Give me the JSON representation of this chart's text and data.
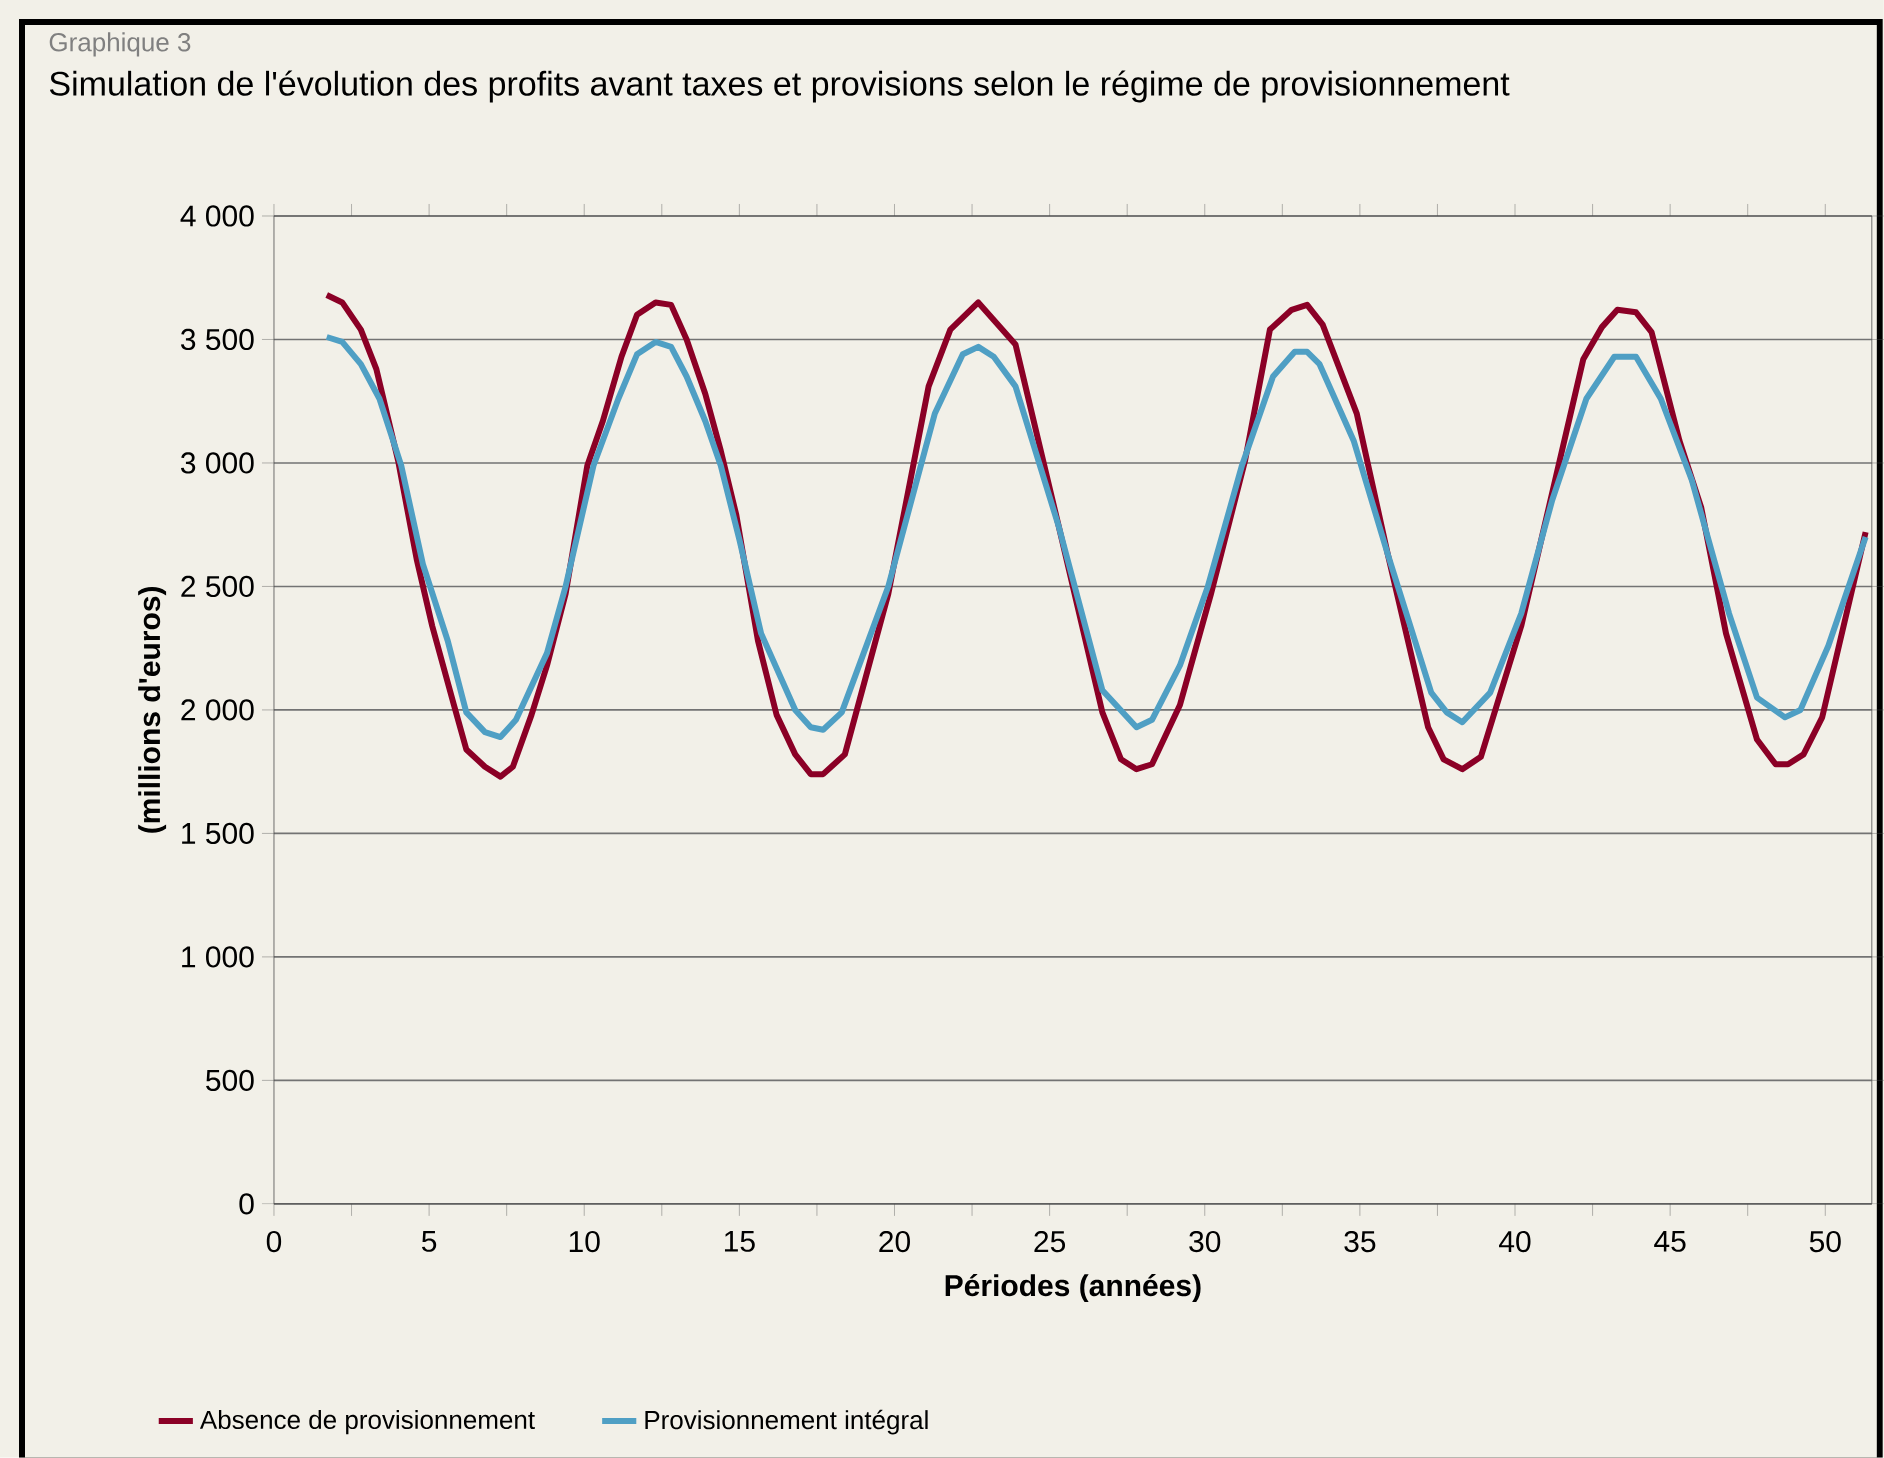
{
  "chart_data": {
    "type": "line",
    "title": "Simulation de l'évolution des profits avant taxes et provisions selon le régime de provisionnement",
    "annotations": [
      "Graphique 3"
    ],
    "xlabel": "Périodes (années)",
    "ylabel": "(millions d'euros)",
    "xlim": [
      0,
      51.5
    ],
    "ylim": [
      0,
      4000
    ],
    "xticks": [
      0,
      {
        "value": 2.5,
        "label": null
      },
      5,
      {
        "value": 7.5,
        "label": null
      },
      10,
      {
        "value": 12.5,
        "label": null
      },
      15,
      {
        "value": 17.5,
        "label": null
      },
      20,
      {
        "value": 22.5,
        "label": null
      },
      25,
      {
        "value": 27.5,
        "label": null
      },
      30,
      {
        "value": 32.5,
        "label": null
      },
      35,
      {
        "value": 37.5,
        "label": null
      },
      40,
      {
        "value": 42.5,
        "label": null
      },
      45,
      {
        "value": 47.5,
        "label": null
      },
      50
    ],
    "yticks": [
      0,
      500,
      {
        "value": 1000,
        "label": "1 000"
      },
      {
        "value": 1500,
        "label": "1 500"
      },
      {
        "value": 2000,
        "label": "2 000"
      },
      {
        "value": 2500,
        "label": "2 500"
      },
      {
        "value": 3000,
        "label": "3 000"
      },
      {
        "value": 3500,
        "label": "3 500"
      },
      {
        "value": 4000,
        "label": "4 000"
      }
    ],
    "grid": "y",
    "legend": "bottom",
    "marker": "none",
    "line_style": "solid",
    "series": [
      {
        "name": "Absence de provisionnement",
        "color": "#8b0026",
        "x": [
          1.7,
          2.2,
          2.8,
          3.3,
          4.0,
          4.6,
          5.1,
          5.8,
          6.2,
          6.8,
          7.3,
          7.7,
          8.3,
          8.8,
          9.4,
          10.1,
          10.6,
          11.2,
          11.7,
          12.3,
          12.8,
          13.3,
          13.9,
          14.4,
          14.9,
          15.6,
          16.2,
          16.8,
          17.3,
          17.7,
          18.4,
          19.8,
          21.1,
          21.8,
          22.7,
          23.9,
          25.3,
          26.7,
          27.3,
          27.8,
          28.3,
          29.2,
          30.2,
          31.3,
          32.1,
          32.8,
          33.3,
          33.8,
          34.9,
          35.9,
          37.2,
          37.7,
          38.3,
          38.9,
          40.2,
          41.2,
          42.2,
          42.8,
          43.3,
          43.9,
          44.4,
          45.3,
          46.0,
          46.8,
          47.8,
          48.4,
          48.8,
          49.3,
          49.9,
          51.3
        ],
        "values": [
          3680,
          3650,
          3540,
          3380,
          3010,
          2610,
          2340,
          2020,
          1840,
          1770,
          1730,
          1770,
          1980,
          2180,
          2470,
          2990,
          3170,
          3430,
          3600,
          3650,
          3640,
          3500,
          3280,
          3050,
          2790,
          2280,
          1980,
          1820,
          1740,
          1740,
          1820,
          2470,
          3310,
          3540,
          3650,
          3480,
          2740,
          1990,
          1800,
          1760,
          1780,
          2020,
          2470,
          3010,
          3540,
          3620,
          3640,
          3560,
          3200,
          2630,
          1930,
          1800,
          1760,
          1810,
          2340,
          2880,
          3420,
          3550,
          3620,
          3610,
          3530,
          3090,
          2820,
          2310,
          1880,
          1780,
          1780,
          1820,
          1970,
          2720
        ]
      },
      {
        "name": "Provisionnement intégral",
        "color": "#4f9fc4",
        "x": [
          1.7,
          2.2,
          2.8,
          3.4,
          4.1,
          4.8,
          5.6,
          6.2,
          6.8,
          7.3,
          7.8,
          8.8,
          9.4,
          10.3,
          11.1,
          11.7,
          12.3,
          12.8,
          13.3,
          13.9,
          14.4,
          15.0,
          15.7,
          16.8,
          17.3,
          17.7,
          18.3,
          19.8,
          21.3,
          22.2,
          22.7,
          23.2,
          23.9,
          25.3,
          26.7,
          27.8,
          28.3,
          29.2,
          30.1,
          31.2,
          32.2,
          32.9,
          33.3,
          33.7,
          34.8,
          35.9,
          37.3,
          37.8,
          38.3,
          39.2,
          40.2,
          41.2,
          42.3,
          43.2,
          43.9,
          44.7,
          45.7,
          46.9,
          47.8,
          48.7,
          49.2,
          50.1,
          51.3
        ],
        "values": [
          3510,
          3490,
          3400,
          3260,
          2990,
          2590,
          2280,
          1990,
          1910,
          1890,
          1960,
          2230,
          2500,
          2990,
          3260,
          3440,
          3490,
          3470,
          3350,
          3170,
          2990,
          2690,
          2310,
          2000,
          1930,
          1920,
          1990,
          2500,
          3200,
          3440,
          3470,
          3430,
          3310,
          2740,
          2080,
          1930,
          1960,
          2180,
          2500,
          2990,
          3350,
          3450,
          3450,
          3400,
          3090,
          2630,
          2070,
          1990,
          1950,
          2070,
          2390,
          2850,
          3260,
          3430,
          3430,
          3260,
          2930,
          2390,
          2050,
          1970,
          2000,
          2260,
          2700
        ]
      }
    ]
  }
}
